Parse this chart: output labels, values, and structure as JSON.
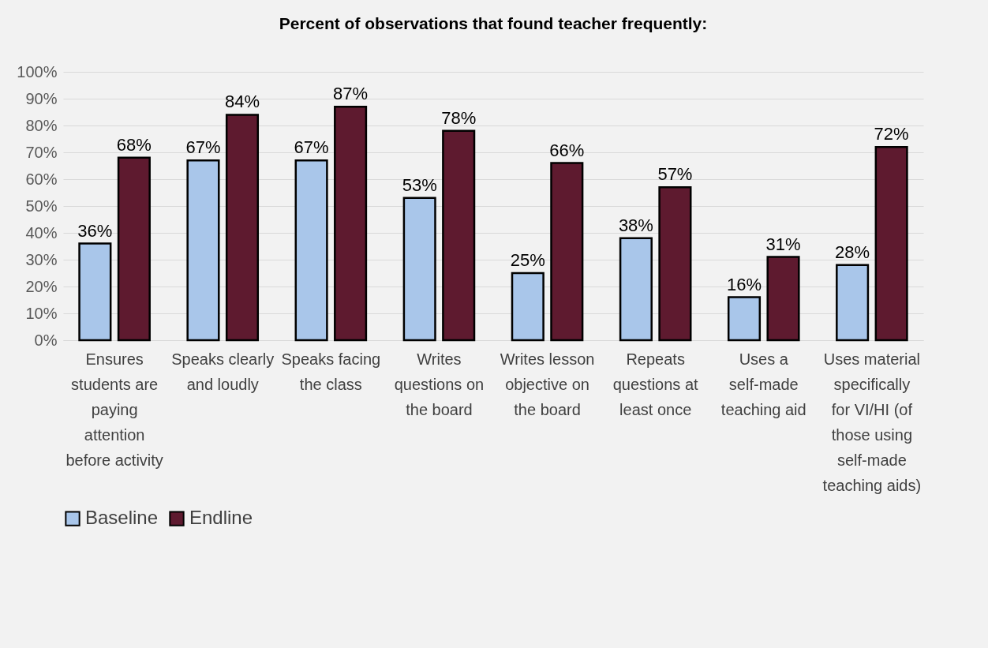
{
  "chart_data": {
    "type": "bar",
    "title": "Percent of observations that found teacher frequently:",
    "categories": [
      "Ensures students are paying attention before activity",
      "Speaks clearly and loudly",
      "Speaks facing the class",
      "Writes questions on the board",
      "Writes lesson objective on the board",
      "Repeats questions at least once",
      "Uses a self-made teaching aid",
      "Uses material specifically for VI/HI (of those using self-made teaching aids)"
    ],
    "series": [
      {
        "name": "Baseline",
        "color": "#a9c6ea",
        "values": [
          36,
          67,
          67,
          53,
          25,
          38,
          16,
          28
        ],
        "value_labels": [
          "36%",
          "67%",
          "67%",
          "53%",
          "25%",
          "38%",
          "16%",
          "28%"
        ]
      },
      {
        "name": "Endline",
        "color": "#5e1a2f",
        "values": [
          68,
          84,
          87,
          78,
          66,
          57,
          31,
          72
        ],
        "value_labels": [
          "68%",
          "84%",
          "87%",
          "78%",
          "66%",
          "57%",
          "31%",
          "72%"
        ]
      }
    ],
    "ylim": [
      0,
      100
    ],
    "yticks": [
      {
        "value": 0,
        "label": "0%"
      },
      {
        "value": 10,
        "label": "10%"
      },
      {
        "value": 20,
        "label": "20%"
      },
      {
        "value": 30,
        "label": "30%"
      },
      {
        "value": 40,
        "label": "40%"
      },
      {
        "value": 50,
        "label": "50%"
      },
      {
        "value": 60,
        "label": "60%"
      },
      {
        "value": 70,
        "label": "70%"
      },
      {
        "value": 80,
        "label": "80%"
      },
      {
        "value": 90,
        "label": "90%"
      },
      {
        "value": 100,
        "label": "100%"
      }
    ],
    "grid": "y",
    "legend": "bottom"
  }
}
